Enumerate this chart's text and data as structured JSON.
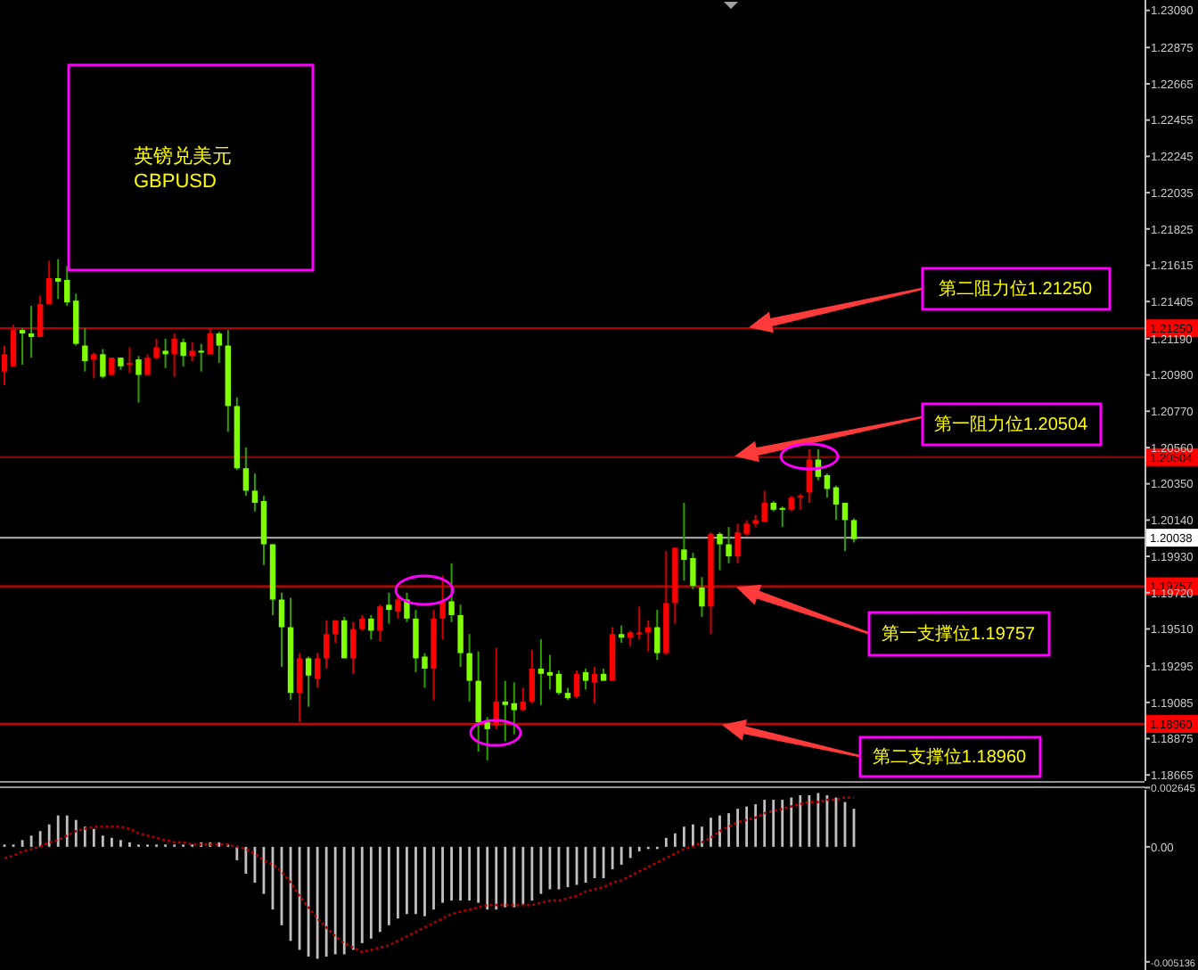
{
  "chart_data": [
    {
      "type": "candlestick",
      "title": "英镑兑美元",
      "subtitle": "GBPUSD",
      "categories": [
        null,
        null,
        null,
        null,
        null,
        null,
        null,
        null,
        null,
        null,
        null,
        null,
        null,
        null,
        null,
        null,
        null,
        null,
        null,
        null,
        null,
        null,
        null,
        null,
        null,
        null,
        null,
        null,
        null,
        null,
        null,
        null,
        null,
        null,
        null,
        null,
        null,
        null,
        null,
        null,
        null,
        null,
        null,
        null,
        null,
        null,
        null,
        null,
        null,
        null,
        null,
        null,
        null,
        null,
        null,
        null,
        null,
        null,
        null,
        null,
        null,
        null,
        null,
        null,
        null,
        null,
        null,
        null,
        null,
        null,
        null,
        null,
        null,
        null,
        null,
        null,
        null,
        null,
        null,
        null,
        null,
        null,
        null,
        null,
        null,
        null,
        null,
        null,
        null,
        null,
        null,
        null,
        null,
        null,
        null,
        null,
        null,
        null,
        null,
        null,
        null,
        null,
        null,
        null,
        null,
        null,
        null,
        null,
        null,
        null,
        null,
        null,
        null,
        null,
        null,
        null,
        null,
        null,
        null,
        null,
        null,
        null,
        null,
        null,
        null,
        null,
        null,
        null
      ],
      "ohlc": [
        [
          1.21,
          1.2115,
          1.2092,
          1.211
        ],
        [
          1.2103,
          1.2127,
          1.2103,
          1.2124
        ],
        [
          1.2124,
          1.2125,
          1.2104,
          1.2122
        ],
        [
          1.2122,
          1.2138,
          1.2108,
          1.212
        ],
        [
          1.212,
          1.2144,
          1.212,
          1.2139
        ],
        [
          1.2139,
          1.2164,
          1.2139,
          1.2154
        ],
        [
          1.2154,
          1.2165,
          1.2142,
          1.2152
        ],
        [
          1.2153,
          1.2161,
          1.2138,
          1.214
        ],
        [
          1.2141,
          1.2145,
          1.2115,
          1.2116
        ],
        [
          1.2115,
          1.2125,
          1.21,
          1.2106
        ],
        [
          1.2107,
          1.2111,
          1.2096,
          1.211
        ],
        [
          1.211,
          1.2113,
          1.2096,
          1.2097
        ],
        [
          1.2098,
          1.2108,
          1.2098,
          1.2108
        ],
        [
          1.2108,
          1.2108,
          1.2101,
          1.2103
        ],
        [
          1.2104,
          1.2114,
          1.2099,
          1.2105
        ],
        [
          1.2107,
          1.2109,
          1.2082,
          1.2098
        ],
        [
          1.2098,
          1.211,
          1.2098,
          1.2108
        ],
        [
          1.2108,
          1.2119,
          1.2107,
          1.2114
        ],
        [
          1.2112,
          1.2119,
          1.2102,
          1.211
        ],
        [
          1.211,
          1.2122,
          1.2097,
          1.2119
        ],
        [
          1.2117,
          1.2119,
          1.2103,
          1.2109
        ],
        [
          1.2109,
          1.2117,
          1.2106,
          1.2112
        ],
        [
          1.2112,
          1.2116,
          1.21,
          1.2111
        ],
        [
          1.211,
          1.2125,
          1.211,
          1.2122
        ],
        [
          1.2122,
          1.2123,
          1.2105,
          1.2115
        ],
        [
          1.2115,
          1.2124,
          1.2065,
          1.208
        ],
        [
          1.208,
          1.2085,
          1.2043,
          1.2044
        ],
        [
          1.2044,
          1.2056,
          1.2028,
          1.2031
        ],
        [
          1.2031,
          1.2041,
          1.2019,
          1.2024
        ],
        [
          1.2025,
          1.2028,
          1.1988,
          1.2
        ],
        [
          1.2,
          1.2,
          1.1959,
          1.1968
        ],
        [
          1.1968,
          1.1972,
          1.1929,
          1.1952
        ],
        [
          1.1952,
          1.1969,
          1.191,
          1.1914
        ],
        [
          1.1914,
          1.1937,
          1.1897,
          1.1934
        ],
        [
          1.1934,
          1.1935,
          1.1906,
          1.1924
        ],
        [
          1.1922,
          1.1937,
          1.1917,
          1.1934
        ],
        [
          1.1934,
          1.1956,
          1.1928,
          1.1948
        ],
        [
          1.1948,
          1.1956,
          1.1943,
          1.1956
        ],
        [
          1.1956,
          1.1958,
          1.1934,
          1.1934
        ],
        [
          1.1934,
          1.1955,
          1.1925,
          1.1951
        ],
        [
          1.1951,
          1.1959,
          1.195,
          1.1957
        ],
        [
          1.1957,
          1.1959,
          1.1945,
          1.195
        ],
        [
          1.195,
          1.1965,
          1.1944,
          1.1964
        ],
        [
          1.1965,
          1.1972,
          1.1954,
          1.1962
        ],
        [
          1.1961,
          1.1971,
          1.1957,
          1.1968
        ],
        [
          1.1968,
          1.1972,
          1.1955,
          1.1957
        ],
        [
          1.1957,
          1.1962,
          1.1926,
          1.1934
        ],
        [
          1.1935,
          1.1937,
          1.1917,
          1.1928
        ],
        [
          1.1928,
          1.1962,
          1.191,
          1.1957
        ],
        [
          1.1957,
          1.1982,
          1.1945,
          1.1967
        ],
        [
          1.1967,
          1.1989,
          1.1955,
          1.1959
        ],
        [
          1.1959,
          1.1965,
          1.1929,
          1.1937
        ],
        [
          1.1937,
          1.1948,
          1.1909,
          1.1921
        ],
        [
          1.1921,
          1.1938,
          1.188,
          1.1897
        ],
        [
          1.1897,
          1.19,
          1.1875,
          1.1893
        ],
        [
          1.1895,
          1.194,
          1.1893,
          1.1909
        ],
        [
          1.1909,
          1.1921,
          1.1886,
          1.1907
        ],
        [
          1.1908,
          1.192,
          1.189,
          1.1904
        ],
        [
          1.1904,
          1.1917,
          1.1904,
          1.1909
        ],
        [
          1.1909,
          1.1939,
          1.1908,
          1.1928
        ],
        [
          1.1928,
          1.1945,
          1.1907,
          1.1925
        ],
        [
          1.1926,
          1.1936,
          1.1916,
          1.1924
        ],
        [
          1.1925,
          1.1927,
          1.1913,
          1.1914
        ],
        [
          1.1914,
          1.1917,
          1.191,
          1.1911
        ],
        [
          1.1912,
          1.1927,
          1.1911,
          1.1925
        ],
        [
          1.1926,
          1.1928,
          1.1916,
          1.1921
        ],
        [
          1.192,
          1.1929,
          1.1908,
          1.1925
        ],
        [
          1.1925,
          1.1928,
          1.1921,
          1.1921
        ],
        [
          1.1921,
          1.1952,
          1.1921,
          1.1948
        ],
        [
          1.1948,
          1.1953,
          1.1943,
          1.1946
        ],
        [
          1.1946,
          1.195,
          1.1941,
          1.1949
        ],
        [
          1.1948,
          1.1964,
          1.1945,
          1.1949
        ],
        [
          1.1949,
          1.1956,
          1.1938,
          1.1952
        ],
        [
          1.1952,
          1.1962,
          1.1933,
          1.1937
        ],
        [
          1.1937,
          1.1996,
          1.1936,
          1.1966
        ],
        [
          1.1966,
          1.1998,
          1.1954,
          1.1998
        ],
        [
          1.1997,
          1.2024,
          1.1979,
          1.1991
        ],
        [
          1.1992,
          1.1995,
          1.1974,
          1.1976
        ],
        [
          1.1975,
          1.1981,
          1.1958,
          1.1964
        ],
        [
          1.1964,
          1.2007,
          1.1948,
          1.2006
        ],
        [
          1.2006,
          1.2007,
          1.1985,
          1.2
        ],
        [
          1.2,
          1.201,
          1.1989,
          1.1993
        ],
        [
          1.1993,
          1.2012,
          1.1989,
          1.2007
        ],
        [
          1.2006,
          1.2014,
          1.2005,
          1.2012
        ],
        [
          1.2012,
          1.2017,
          1.201,
          1.2014
        ],
        [
          1.2013,
          1.2031,
          1.2013,
          1.2024
        ],
        [
          1.2024,
          1.2025,
          1.2019,
          1.202
        ],
        [
          1.2021,
          1.2022,
          1.201,
          1.202
        ],
        [
          1.202,
          1.2028,
          1.2019,
          1.2027
        ],
        [
          1.2027,
          1.2029,
          1.202,
          1.2028
        ],
        [
          1.203,
          1.2055,
          1.2024,
          1.2049
        ],
        [
          1.2049,
          1.2055,
          1.2037,
          1.2039
        ],
        [
          1.204,
          1.2041,
          1.2027,
          1.2032
        ],
        [
          1.2033,
          1.2034,
          1.2014,
          1.2023
        ],
        [
          1.2024,
          1.2024,
          1.1996,
          1.2014
        ],
        [
          1.2014,
          1.2015,
          1.2001,
          1.2003
        ],
        null,
        null,
        null,
        null,
        null,
        null,
        null,
        null,
        null,
        null,
        null,
        null,
        null,
        null,
        null,
        null,
        null,
        null,
        null,
        null,
        null,
        null,
        null,
        null,
        null,
        null,
        null,
        null,
        null,
        null,
        null,
        null
      ],
      "ylim": [
        1.1863,
        1.2315
      ],
      "yticks": [
        {
          "value": 1.2309,
          "label": "1.23090"
        },
        1.22875,
        1.22665,
        1.22455,
        1.22245,
        1.22035,
        1.21825,
        1.21615,
        1.21405,
        {
          "value": 1.2119,
          "label": "1.21190"
        },
        {
          "value": 1.2098,
          "label": "1.20980"
        },
        {
          "value": 1.2077,
          "label": "1.20770"
        },
        {
          "value": 1.2056,
          "label": "1.20560"
        },
        {
          "value": 1.2035,
          "label": "1.20350"
        },
        {
          "value": 1.2014,
          "label": "1.20140"
        },
        {
          "value": 1.1993,
          "label": "1.19930"
        },
        {
          "value": 1.1972,
          "label": "1.19720"
        },
        {
          "value": 1.1951,
          "label": "1.19510"
        },
        1.19295,
        1.19085,
        1.18875,
        1.18665
      ],
      "ref_lines": [
        {
          "axis": "y",
          "value": 1.2125,
          "label": "1.21250",
          "color": "#b00000"
        },
        {
          "axis": "y",
          "value": 1.20504,
          "label": "1.20504",
          "color": "#8b0000"
        },
        {
          "axis": "y",
          "value": 1.20038,
          "label": "1.20038",
          "color": "#a0a0a0"
        },
        {
          "axis": "y",
          "value": 1.19757,
          "label": "1.19757",
          "color": "#d00000"
        },
        {
          "axis": "y",
          "value": 1.1896,
          "label": "1.18960",
          "color": "#d00000"
        }
      ],
      "annotations": [
        {
          "text": "第二阻力位1.21250",
          "y": 1.2125
        },
        {
          "text": "第一阻力位1.20504",
          "y": 1.20504
        },
        {
          "text": "第一支撑位1.19757",
          "y": 1.19757
        },
        {
          "text": "第二支撑位1.18960",
          "y": 1.1896
        }
      ]
    },
    {
      "type": "bar",
      "categories": [
        null,
        null,
        null,
        null,
        null,
        null,
        null,
        null,
        null,
        null,
        null,
        null,
        null,
        null,
        null,
        null,
        null,
        null,
        null,
        null,
        null,
        null,
        null,
        null,
        null,
        null,
        null,
        null,
        null,
        null,
        null,
        null,
        null,
        null,
        null,
        null,
        null,
        null,
        null,
        null,
        null,
        null,
        null,
        null,
        null,
        null,
        null,
        null,
        null,
        null,
        null,
        null,
        null,
        null,
        null,
        null,
        null,
        null,
        null,
        null,
        null,
        null,
        null,
        null,
        null,
        null,
        null,
        null,
        null,
        null,
        null,
        null,
        null,
        null,
        null,
        null,
        null,
        null,
        null,
        null,
        null,
        null,
        null,
        null,
        null,
        null,
        null,
        null,
        null,
        null,
        null,
        null,
        null,
        null,
        null,
        null,
        null,
        null,
        null,
        null,
        null,
        null,
        null,
        null,
        null,
        null,
        null,
        null,
        null,
        null,
        null,
        null,
        null,
        null,
        null,
        null,
        null,
        null,
        null,
        null,
        null,
        null,
        null,
        null,
        null,
        null,
        null,
        null
      ],
      "series": [
        {
          "color": "#c0c0c0",
          "values": [
            0.0001,
            0.0001,
            0.0003,
            0.0005,
            0.0007,
            0.001,
            0.0014,
            0.0014,
            0.0012,
            0.0009,
            0.0008,
            0.0005,
            0.0004,
            0.0003,
            0.0002,
            0.0001,
            0.0001,
            0.0001,
            0.0001,
            0.0001,
            0.0001,
            0.0001,
            0.0002,
            0.0002,
            0.0002,
            0.0001,
            -0.0006,
            -0.0012,
            -0.0016,
            -0.0021,
            -0.0028,
            -0.0035,
            -0.0042,
            -0.0046,
            -0.0049,
            -0.005,
            -0.0049,
            -0.0048,
            -0.0048,
            -0.0046,
            -0.0043,
            -0.0041,
            -0.0038,
            -0.0035,
            -0.0032,
            -0.003,
            -0.003,
            -0.0031,
            -0.0028,
            -0.0025,
            -0.0024,
            -0.0024,
            -0.0024,
            -0.0025,
            -0.0028,
            -0.0028,
            -0.0027,
            -0.0027,
            -0.0026,
            -0.0024,
            -0.0021,
            -0.0019,
            -0.0019,
            -0.0018,
            -0.0017,
            -0.0016,
            -0.0014,
            -0.0014,
            -0.001,
            -0.0008,
            -0.0005,
            -0.0002,
            -0.0001,
            -0.0001,
            0.0004,
            0.0006,
            0.0009,
            0.001,
            0.0009,
            0.0013,
            0.0014,
            0.0015,
            0.0017,
            0.0018,
            0.0019,
            0.0021,
            0.0021,
            0.0021,
            0.0022,
            0.0023,
            0.0023,
            0.0024,
            0.0023,
            0.0022,
            0.002,
            0.0017,
            null,
            null,
            null,
            null,
            null,
            null,
            null,
            null,
            null,
            null,
            null,
            null,
            null,
            null,
            null,
            null,
            null,
            null,
            null,
            null,
            null,
            null,
            null,
            null,
            null,
            null,
            null,
            null,
            null,
            null,
            null,
            null
          ]
        },
        {
          "type": "line",
          "color": "#b00000",
          "line_style": "dotted",
          "values": [
            -0.0005,
            -0.0004,
            -0.0002,
            -0.0001,
            0.0,
            0.0002,
            0.0003,
            0.0005,
            0.0007,
            0.0008,
            0.0009,
            0.0009,
            0.0009,
            0.0009,
            0.0008,
            0.0006,
            0.0005,
            0.0004,
            0.0003,
            0.0002,
            0.0002,
            0.0001,
            0.0001,
            0.0001,
            0.0001,
            0.0001,
            0.0,
            -0.0001,
            -0.0003,
            -0.0006,
            -0.0008,
            -0.0011,
            -0.0016,
            -0.0022,
            -0.0027,
            -0.0032,
            -0.0036,
            -0.004,
            -0.0043,
            -0.0045,
            -0.0047,
            -0.0046,
            -0.0045,
            -0.0044,
            -0.0042,
            -0.004,
            -0.0038,
            -0.0036,
            -0.0034,
            -0.0032,
            -0.003,
            -0.0029,
            -0.0028,
            -0.0027,
            -0.0026,
            -0.0026,
            -0.0026,
            -0.0026,
            -0.0026,
            -0.0026,
            -0.0025,
            -0.0024,
            -0.0024,
            -0.0023,
            -0.0022,
            -0.002,
            -0.0019,
            -0.0018,
            -0.0016,
            -0.0015,
            -0.0013,
            -0.0011,
            -0.0009,
            -0.0007,
            -0.0005,
            -0.0003,
            -0.0001,
            0.0,
            0.0002,
            0.0004,
            0.0007,
            0.0009,
            0.0011,
            0.0012,
            0.0013,
            0.0015,
            0.0016,
            0.0017,
            0.0018,
            0.0019,
            0.002,
            0.002,
            0.0021,
            0.0021,
            0.0022,
            0.0022,
            null,
            null,
            null,
            null,
            null,
            null,
            null,
            null,
            null,
            null,
            null,
            null,
            null,
            null,
            null,
            null,
            null,
            null,
            null,
            null,
            null,
            null,
            null,
            null,
            null,
            null,
            null,
            null,
            null,
            null,
            null,
            null
          ]
        }
      ],
      "ylim": [
        -0.0055,
        0.0027
      ],
      "yticks": [
        0.002645,
        {
          "value": 0,
          "label": "0.00"
        },
        -0.005136
      ]
    }
  ]
}
